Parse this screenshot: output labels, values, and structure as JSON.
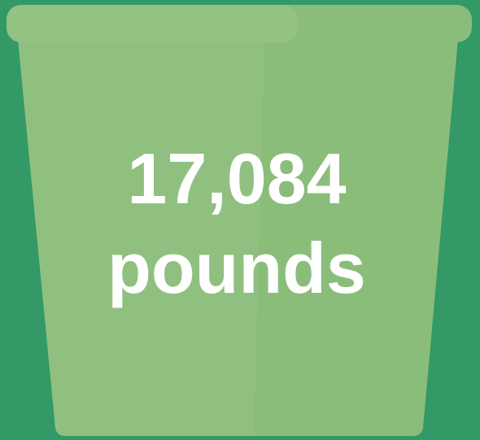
{
  "value": "17,084",
  "unit": "pounds"
}
